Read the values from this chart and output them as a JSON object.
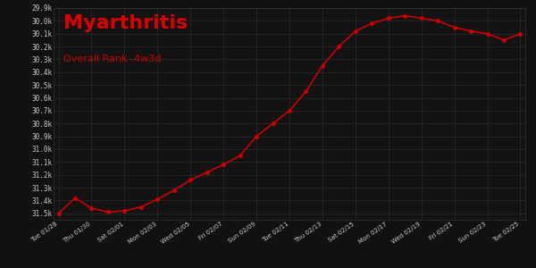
{
  "title": "Myarthritis",
  "subtitle": "Overall Rank -4w3d",
  "background_color": "#111111",
  "plot_bg_color": "#131313",
  "grid_color": "#2a2a2a",
  "line_color": "#cc0000",
  "dot_color": "#cc0000",
  "text_color": "#cccccc",
  "title_color": "#dd0000",
  "subtitle_color": "#cc0000",
  "x_labels": [
    "Tue 01/28",
    "Thu 01/30",
    "Sat 02/01",
    "Mon 02/03",
    "Wed 02/05",
    "Fri 02/07",
    "Sun 02/09",
    "Tue 02/11",
    "Thu 02/13",
    "Sat 02/15",
    "Mon 02/17",
    "Wed 02/19",
    "Fri 02/21",
    "Sun 02/23",
    "Tue 02/25"
  ],
  "x_values": [
    0,
    2,
    4,
    6,
    8,
    10,
    12,
    14,
    16,
    18,
    20,
    22,
    24,
    26,
    28
  ],
  "y_data_x": [
    0,
    1,
    2,
    3,
    4,
    5,
    6,
    7,
    8,
    9,
    10,
    11,
    12,
    13,
    14,
    15,
    16,
    17,
    18,
    19,
    20,
    21,
    22,
    23,
    24,
    25,
    26,
    27,
    28
  ],
  "y_data_y": [
    31500,
    31380,
    31460,
    31490,
    31480,
    31450,
    31390,
    31320,
    31240,
    31180,
    31120,
    31050,
    30900,
    30800,
    30700,
    30550,
    30350,
    30200,
    30080,
    30020,
    29980,
    29960,
    29980,
    30000,
    30050,
    30080,
    30100,
    30150,
    30100
  ],
  "ylim_min": 29900,
  "ylim_max": 31550,
  "yticks": [
    29900,
    30000,
    30100,
    30200,
    30300,
    30400,
    30500,
    30600,
    30700,
    30800,
    30900,
    31000,
    31100,
    31200,
    31300,
    31400,
    31500
  ],
  "ytick_labels": [
    "29.9k",
    "30.0k",
    "30.1k",
    "30.2k",
    "30.3k",
    "30.4k",
    "30.5k",
    "30.6k",
    "30.7k",
    "30.8k",
    "30.9k",
    "31.0k",
    "31.1k",
    "31.2k",
    "31.3k",
    "31.4k",
    "31.5k"
  ],
  "figwidth": 6.0,
  "figheight": 3.0,
  "dpi": 100
}
